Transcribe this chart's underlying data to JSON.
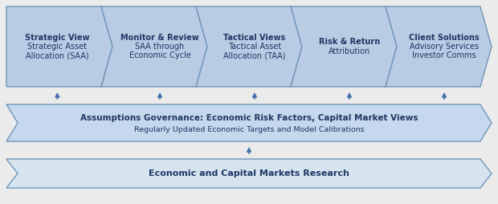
{
  "bg_color": "#ebebeb",
  "arrow_fill": "#b8cce4",
  "arrow_edge": "#7096b8",
  "banner_fill": "#c5d8ed",
  "banner_edge": "#7096b8",
  "bottom_fill": "#d6e4f0",
  "bottom_edge": "#7096b8",
  "up_arrow_color": "#4472a8",
  "top_boxes": [
    {
      "lines": [
        "Strategic View",
        "Strategic Asset",
        "Allocation (SAA)"
      ]
    },
    {
      "lines": [
        "Monitor & Review",
        "SAA through",
        "Economic Cycle"
      ]
    },
    {
      "lines": [
        "Tactical Views",
        "Tactical Asset",
        "Allocation (TAA)"
      ]
    },
    {
      "lines": [
        "Risk & Return",
        "Attribution"
      ]
    },
    {
      "lines": [
        "Client Solutions",
        "Advisory Services",
        "Investor Comms"
      ]
    }
  ],
  "middle_line1": "Assumptions Governance: Economic Risk Factors, Capital Market Views",
  "middle_line2": "Regularly Updated Economic Targets and Model Calibrations",
  "bottom_text": "Economic and Capital Markets Research",
  "fig_width": 6.2,
  "fig_height": 2.54,
  "dpi": 100
}
